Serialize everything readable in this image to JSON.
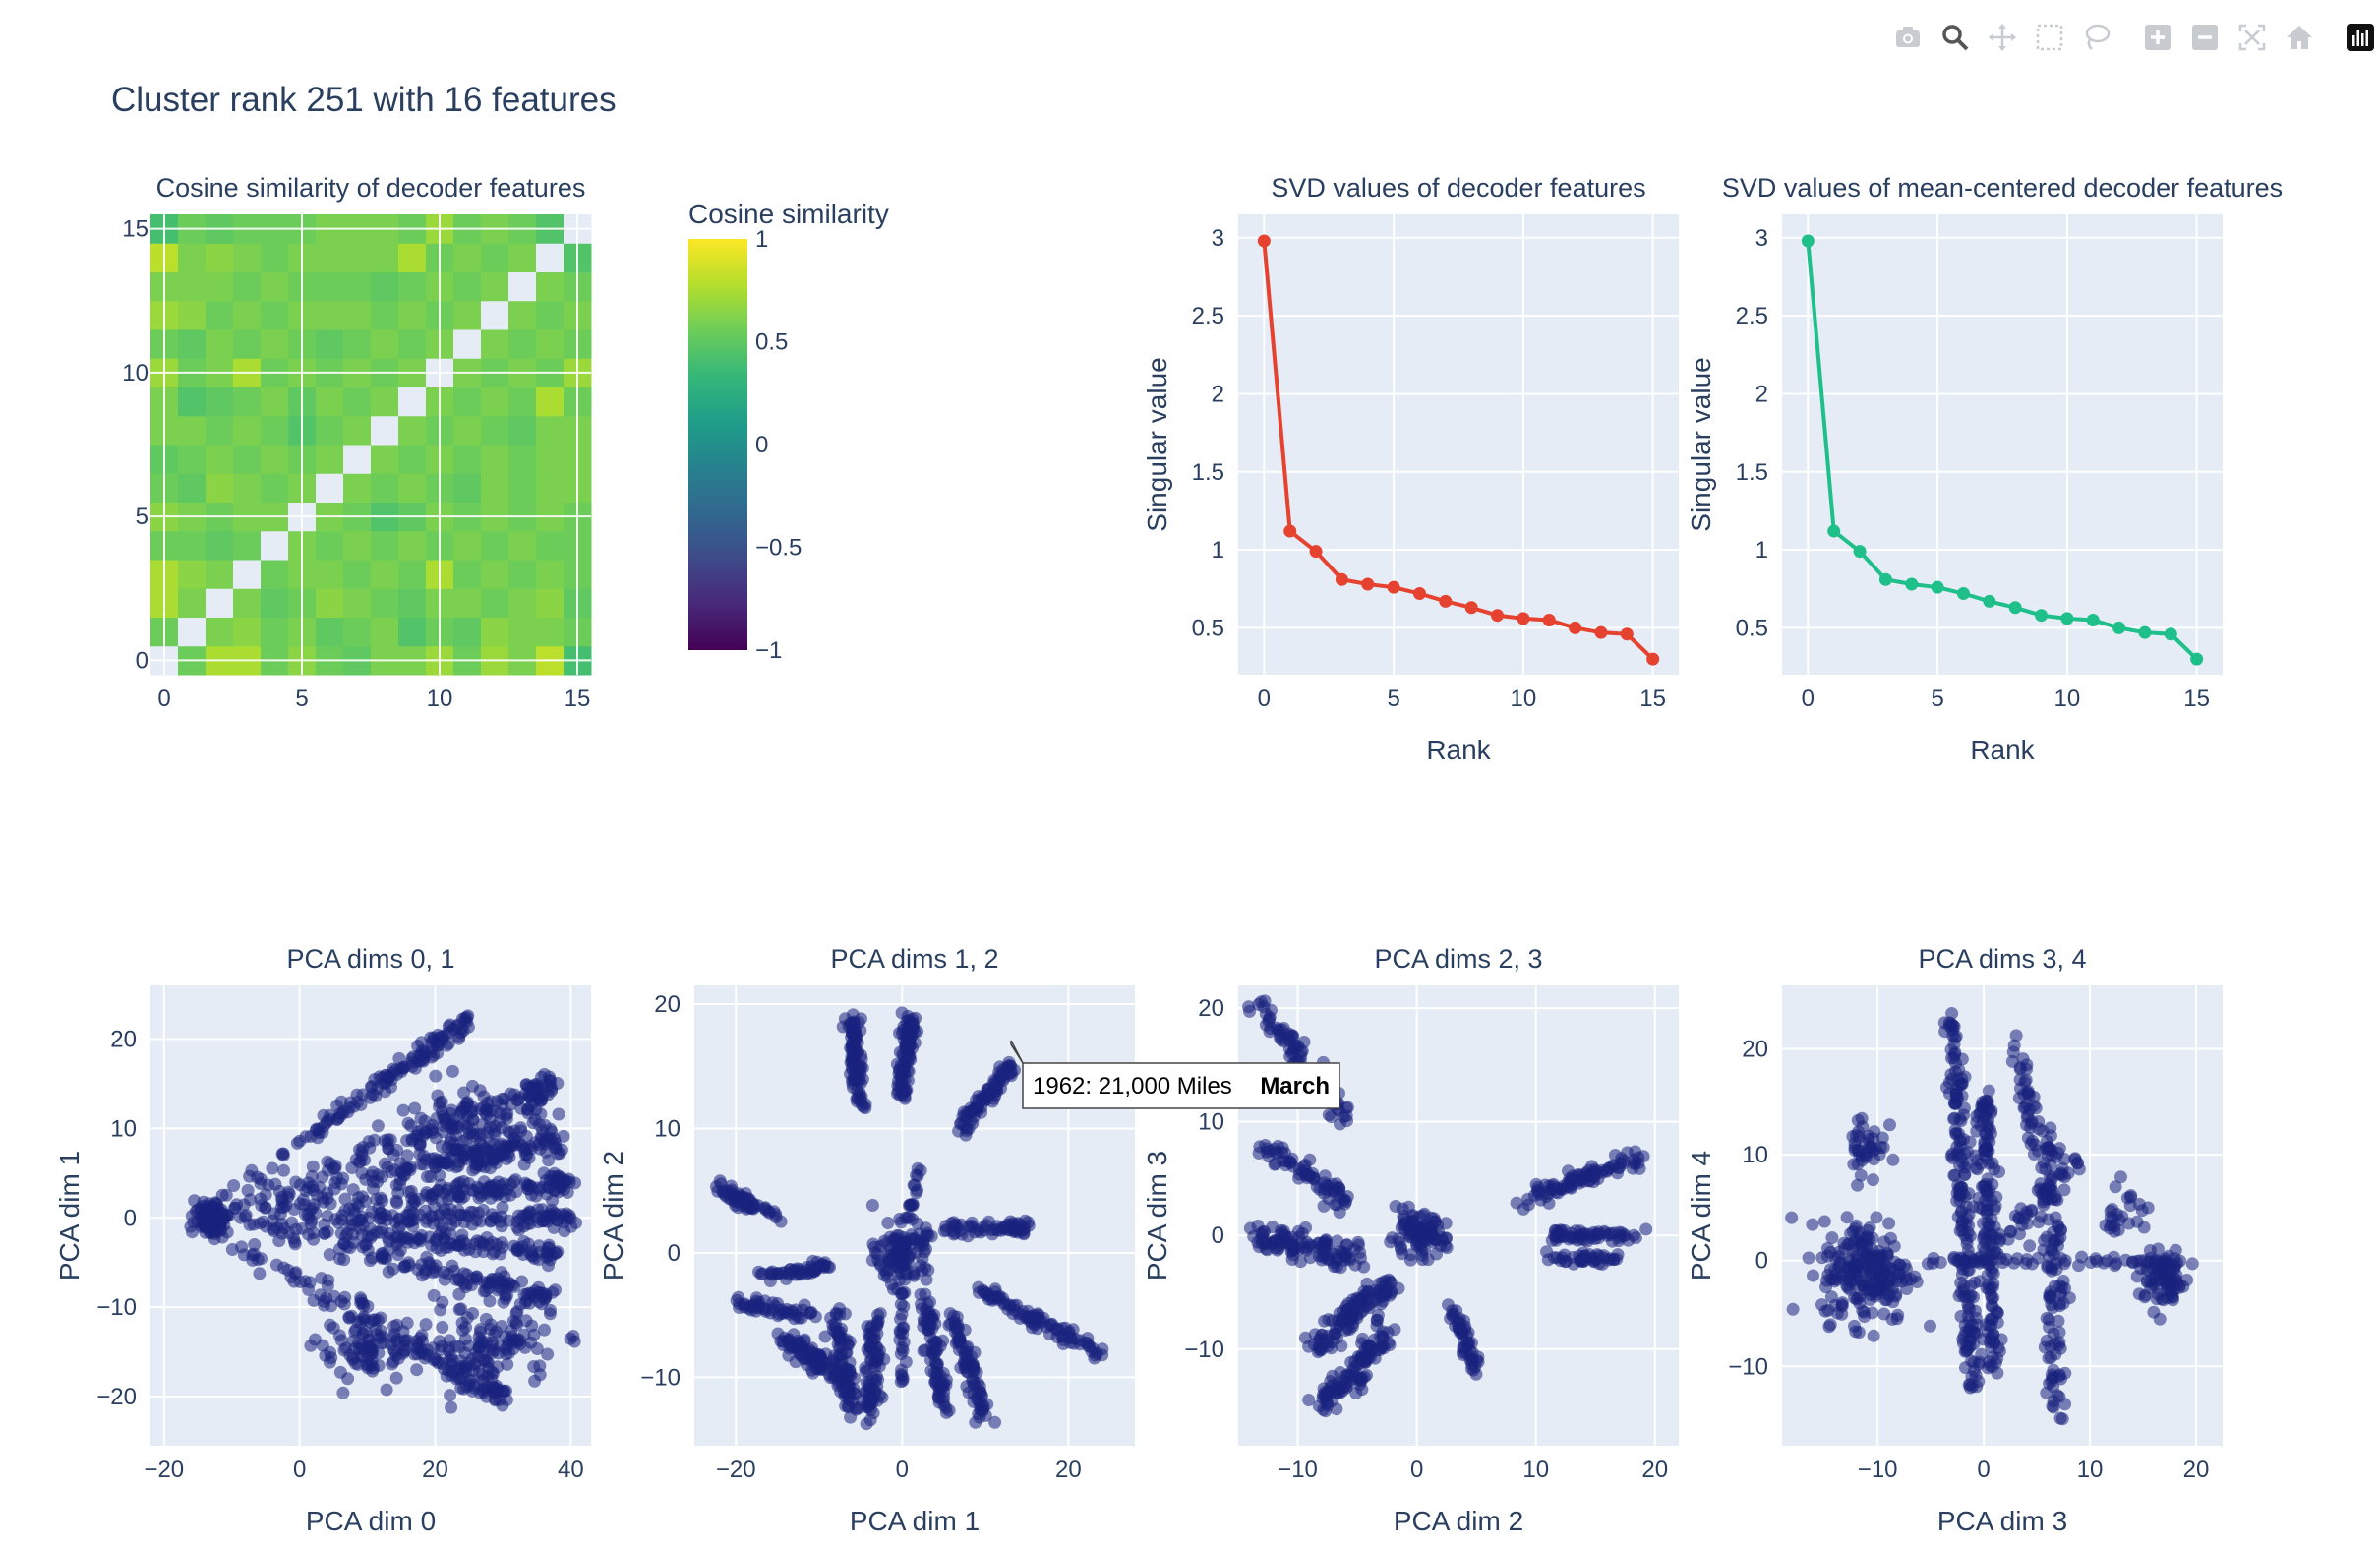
{
  "toolbar": {
    "buttons": [
      {
        "name": "camera-icon",
        "label": "Download plot as a png"
      },
      {
        "name": "zoom-icon",
        "label": "Zoom"
      },
      {
        "name": "pan-icon",
        "label": "Pan"
      },
      {
        "name": "box-select-icon",
        "label": "Box Select"
      },
      {
        "name": "lasso-select-icon",
        "label": "Lasso Select"
      },
      {
        "name": "zoom-in-icon",
        "label": "Zoom in"
      },
      {
        "name": "zoom-out-icon",
        "label": "Zoom out"
      },
      {
        "name": "autoscale-icon",
        "label": "Autoscale"
      },
      {
        "name": "reset-axes-icon",
        "label": "Reset axes"
      },
      {
        "name": "plotly-logo-icon",
        "label": "Produced with Plotly"
      }
    ]
  },
  "colors": {
    "plot_bg": "#e5ecf6",
    "grid": "#ffffff",
    "text": "#2a3f5f",
    "svd_line": "#e5432f",
    "svd_centered_line": "#1fbf8a",
    "scatter_point": "#1a237e"
  },
  "title": "Cluster rank 251 with 16 features",
  "heatmap": {
    "title": "Cosine similarity of decoder features",
    "colorbar_title": "Cosine similarity",
    "colorbar_ticks": [
      "1",
      "0.5",
      "0",
      "−0.5",
      "−1"
    ],
    "x_ticks": [
      "0",
      "5",
      "10",
      "15"
    ],
    "y_ticks": [
      "0",
      "5",
      "10",
      "15"
    ]
  },
  "tooltip": {
    "text": "1962: 21,000 Miles",
    "name": "March"
  },
  "chart_data": [
    {
      "type": "heatmap",
      "title": "Cosine similarity of decoder features",
      "size": 16,
      "colorscale": "Viridis",
      "zrange": [
        -1,
        1
      ],
      "diagonal": "blank",
      "values": [
        [
          null,
          0.55,
          0.75,
          0.75,
          0.55,
          0.65,
          0.55,
          0.5,
          0.6,
          0.6,
          0.7,
          0.55,
          0.7,
          0.6,
          0.8,
          0.4
        ],
        [
          0.55,
          null,
          0.6,
          0.65,
          0.55,
          0.6,
          0.5,
          0.55,
          0.6,
          0.45,
          0.55,
          0.5,
          0.65,
          0.6,
          0.6,
          0.55
        ],
        [
          0.75,
          0.6,
          null,
          0.6,
          0.5,
          0.55,
          0.65,
          0.6,
          0.55,
          0.5,
          0.6,
          0.6,
          0.55,
          0.6,
          0.65,
          0.5
        ],
        [
          0.75,
          0.65,
          0.6,
          null,
          0.55,
          0.6,
          0.6,
          0.55,
          0.6,
          0.55,
          0.75,
          0.55,
          0.6,
          0.55,
          0.6,
          0.55
        ],
        [
          0.55,
          0.55,
          0.5,
          0.55,
          null,
          0.6,
          0.55,
          0.6,
          0.55,
          0.6,
          0.55,
          0.6,
          0.55,
          0.6,
          0.55,
          0.55
        ],
        [
          0.65,
          0.6,
          0.55,
          0.6,
          0.6,
          null,
          0.6,
          0.55,
          0.45,
          0.5,
          0.6,
          0.55,
          0.6,
          0.55,
          0.6,
          0.55
        ],
        [
          0.55,
          0.5,
          0.65,
          0.6,
          0.55,
          0.6,
          null,
          0.6,
          0.55,
          0.6,
          0.55,
          0.5,
          0.6,
          0.55,
          0.6,
          0.6
        ],
        [
          0.5,
          0.55,
          0.6,
          0.55,
          0.6,
          0.55,
          0.6,
          null,
          0.6,
          0.55,
          0.6,
          0.55,
          0.6,
          0.55,
          0.6,
          0.6
        ],
        [
          0.6,
          0.6,
          0.55,
          0.6,
          0.55,
          0.45,
          0.55,
          0.6,
          null,
          0.6,
          0.55,
          0.6,
          0.55,
          0.5,
          0.6,
          0.6
        ],
        [
          0.6,
          0.45,
          0.5,
          0.55,
          0.6,
          0.5,
          0.6,
          0.55,
          0.6,
          null,
          0.6,
          0.55,
          0.6,
          0.55,
          0.75,
          0.55
        ],
        [
          0.7,
          0.55,
          0.6,
          0.75,
          0.55,
          0.6,
          0.55,
          0.6,
          0.55,
          0.6,
          null,
          0.6,
          0.55,
          0.6,
          0.55,
          0.7
        ],
        [
          0.55,
          0.5,
          0.6,
          0.55,
          0.6,
          0.55,
          0.5,
          0.55,
          0.6,
          0.55,
          0.6,
          null,
          0.6,
          0.55,
          0.6,
          0.55
        ],
        [
          0.7,
          0.65,
          0.55,
          0.6,
          0.55,
          0.6,
          0.6,
          0.6,
          0.55,
          0.6,
          0.55,
          0.6,
          null,
          0.6,
          0.55,
          0.6
        ],
        [
          0.6,
          0.6,
          0.6,
          0.55,
          0.6,
          0.55,
          0.55,
          0.55,
          0.5,
          0.55,
          0.6,
          0.55,
          0.6,
          null,
          0.6,
          0.55
        ],
        [
          0.8,
          0.6,
          0.65,
          0.6,
          0.55,
          0.6,
          0.6,
          0.6,
          0.6,
          0.75,
          0.55,
          0.6,
          0.55,
          0.6,
          null,
          0.45
        ],
        [
          0.4,
          0.55,
          0.5,
          0.55,
          0.55,
          0.55,
          0.6,
          0.6,
          0.6,
          0.55,
          0.7,
          0.55,
          0.6,
          0.55,
          0.45,
          null
        ]
      ]
    },
    {
      "type": "line",
      "title": "SVD values of decoder features",
      "xlabel": "Rank",
      "ylabel": "Singular value",
      "x": [
        0,
        1,
        2,
        3,
        4,
        5,
        6,
        7,
        8,
        9,
        10,
        11,
        12,
        13,
        14,
        15
      ],
      "y": [
        2.98,
        1.12,
        0.99,
        0.81,
        0.78,
        0.76,
        0.72,
        0.67,
        0.63,
        0.58,
        0.56,
        0.55,
        0.5,
        0.47,
        0.46,
        0.3
      ],
      "x_ticks": [
        0,
        5,
        10,
        15
      ],
      "y_ticks": [
        0.5,
        1,
        1.5,
        2,
        2.5,
        3
      ],
      "xlim": [
        -1,
        16
      ],
      "ylim": [
        0.2,
        3.15
      ],
      "color": "#e5432f"
    },
    {
      "type": "line",
      "title": "SVD values of mean-centered decoder features",
      "xlabel": "Rank",
      "ylabel": "Singular value",
      "x": [
        0,
        1,
        2,
        3,
        4,
        5,
        6,
        7,
        8,
        9,
        10,
        11,
        12,
        13,
        14,
        15
      ],
      "y": [
        2.98,
        1.12,
        0.99,
        0.81,
        0.78,
        0.76,
        0.72,
        0.67,
        0.63,
        0.58,
        0.56,
        0.55,
        0.5,
        0.47,
        0.46,
        0.3
      ],
      "x_ticks": [
        0,
        5,
        10,
        15
      ],
      "y_ticks": [
        0.5,
        1,
        1.5,
        2,
        2.5,
        3
      ],
      "xlim": [
        -1,
        16
      ],
      "ylim": [
        0.2,
        3.15
      ],
      "color": "#1fbf8a"
    },
    {
      "type": "scatter",
      "title": "PCA dims 0, 1",
      "xlabel": "PCA dim 0",
      "ylabel": "PCA dim 1",
      "xlim": [
        -22,
        43
      ],
      "ylim": [
        -25.5,
        26
      ],
      "x_ticks": [
        -20,
        0,
        20,
        40
      ],
      "y_ticks": [
        -20,
        -10,
        0,
        10,
        20
      ],
      "clusters": [
        {
          "kind": "ray",
          "from": [
            -16,
            0
          ],
          "to": [
            25,
            22
          ],
          "n": 130,
          "spread": 1.2
        },
        {
          "kind": "ray",
          "from": [
            -16,
            0
          ],
          "to": [
            38,
            15
          ],
          "n": 140,
          "spread": 1.4
        },
        {
          "kind": "ray",
          "from": [
            -16,
            0
          ],
          "to": [
            38,
            9
          ],
          "n": 140,
          "spread": 1.3
        },
        {
          "kind": "ray",
          "from": [
            -16,
            0
          ],
          "to": [
            40,
            4
          ],
          "n": 130,
          "spread": 1.2
        },
        {
          "kind": "ray",
          "from": [
            -16,
            0
          ],
          "to": [
            40,
            0
          ],
          "n": 130,
          "spread": 1.0
        },
        {
          "kind": "ray",
          "from": [
            -16,
            0
          ],
          "to": [
            38,
            -4
          ],
          "n": 130,
          "spread": 1.2
        },
        {
          "kind": "ray",
          "from": [
            -16,
            0
          ],
          "to": [
            38,
            -9
          ],
          "n": 120,
          "spread": 1.3
        },
        {
          "kind": "ray",
          "from": [
            -16,
            0
          ],
          "to": [
            30,
            -20
          ],
          "n": 130,
          "spread": 1.5
        },
        {
          "kind": "blob",
          "center": [
            28,
            -14
          ],
          "sx": 8,
          "sy": 4,
          "n": 120
        },
        {
          "kind": "blob",
          "center": [
            10,
            -15
          ],
          "sx": 6,
          "sy": 3,
          "n": 80
        },
        {
          "kind": "blob",
          "center": [
            26,
            8
          ],
          "sx": 10,
          "sy": 5,
          "n": 150
        },
        {
          "kind": "blob",
          "center": [
            -13,
            0
          ],
          "sx": 2,
          "sy": 1.5,
          "n": 120
        }
      ]
    },
    {
      "type": "scatter",
      "title": "PCA dims 1, 2",
      "xlabel": "PCA dim 1",
      "ylabel": "PCA dim 2",
      "xlim": [
        -25,
        28
      ],
      "ylim": [
        -15.5,
        21.5
      ],
      "x_ticks": [
        -20,
        0,
        20
      ],
      "y_ticks": [
        -10,
        0,
        10,
        20
      ],
      "clusters": [
        {
          "kind": "segment",
          "from": [
            -6,
            19
          ],
          "to": [
            -5,
            12
          ],
          "n": 100,
          "spread": 0.8
        },
        {
          "kind": "segment",
          "from": [
            1,
            19
          ],
          "to": [
            0,
            13
          ],
          "n": 100,
          "spread": 0.8
        },
        {
          "kind": "segment",
          "from": [
            13,
            15
          ],
          "to": [
            7,
            10
          ],
          "n": 80,
          "spread": 0.8
        },
        {
          "kind": "segment",
          "from": [
            -22,
            5
          ],
          "to": [
            -15,
            3
          ],
          "n": 60,
          "spread": 0.6
        },
        {
          "kind": "segment",
          "from": [
            5,
            2
          ],
          "to": [
            15,
            2
          ],
          "n": 60,
          "spread": 0.6
        },
        {
          "kind": "segment",
          "from": [
            -17,
            -2
          ],
          "to": [
            -8,
            -1
          ],
          "n": 50,
          "spread": 0.6
        },
        {
          "kind": "segment",
          "from": [
            -20,
            -4
          ],
          "to": [
            -11,
            -5
          ],
          "n": 50,
          "spread": 0.6
        },
        {
          "kind": "segment",
          "from": [
            9,
            -3
          ],
          "to": [
            24,
            -8
          ],
          "n": 90,
          "spread": 0.7
        },
        {
          "kind": "segment",
          "from": [
            -14,
            -7
          ],
          "to": [
            -7,
            -10
          ],
          "n": 90,
          "spread": 1.0
        },
        {
          "kind": "segment",
          "from": [
            -8,
            -5
          ],
          "to": [
            -6,
            -13
          ],
          "n": 80,
          "spread": 1.0
        },
        {
          "kind": "segment",
          "from": [
            -3,
            -5
          ],
          "to": [
            -4,
            -13
          ],
          "n": 80,
          "spread": 1.0
        },
        {
          "kind": "segment",
          "from": [
            3,
            -4
          ],
          "to": [
            5,
            -13
          ],
          "n": 80,
          "spread": 1.0
        },
        {
          "kind": "segment",
          "from": [
            6,
            -5
          ],
          "to": [
            10,
            -13
          ],
          "n": 80,
          "spread": 1.0
        },
        {
          "kind": "blob",
          "center": [
            0,
            0
          ],
          "sx": 2.5,
          "sy": 2,
          "n": 120
        },
        {
          "kind": "segment",
          "from": [
            0,
            0
          ],
          "to": [
            0,
            -11
          ],
          "n": 30,
          "spread": 0.4
        },
        {
          "kind": "segment",
          "from": [
            0,
            0
          ],
          "to": [
            2,
            7
          ],
          "n": 20,
          "spread": 0.4
        }
      ]
    },
    {
      "type": "scatter",
      "title": "PCA dims 2, 3",
      "xlabel": "PCA dim 2",
      "ylabel": "PCA dim 3",
      "xlim": [
        -15,
        22
      ],
      "ylim": [
        -18.5,
        22
      ],
      "x_ticks": [
        -10,
        0,
        10,
        20
      ],
      "y_ticks": [
        -10,
        0,
        10,
        20
      ],
      "clusters": [
        {
          "kind": "segment",
          "from": [
            -13,
            20
          ],
          "to": [
            -6,
            10
          ],
          "n": 90,
          "spread": 0.9
        },
        {
          "kind": "segment",
          "from": [
            -13,
            8
          ],
          "to": [
            -6,
            3
          ],
          "n": 70,
          "spread": 0.9
        },
        {
          "kind": "segment",
          "from": [
            -14,
            0
          ],
          "to": [
            -5,
            -2
          ],
          "n": 110,
          "spread": 1.2
        },
        {
          "kind": "segment",
          "from": [
            -9,
            -10
          ],
          "to": [
            -2,
            -4
          ],
          "n": 100,
          "spread": 1.0
        },
        {
          "kind": "segment",
          "from": [
            -8,
            -15
          ],
          "to": [
            -2,
            -8
          ],
          "n": 90,
          "spread": 1.0
        },
        {
          "kind": "segment",
          "from": [
            3,
            -6
          ],
          "to": [
            5,
            -12
          ],
          "n": 50,
          "spread": 0.6
        },
        {
          "kind": "segment",
          "from": [
            9,
            3
          ],
          "to": [
            19,
            7
          ],
          "n": 90,
          "spread": 0.8
        },
        {
          "kind": "segment",
          "from": [
            11,
            0
          ],
          "to": [
            19,
            0
          ],
          "n": 60,
          "spread": 0.5
        },
        {
          "kind": "segment",
          "from": [
            11,
            -2
          ],
          "to": [
            17,
            -2
          ],
          "n": 40,
          "spread": 0.5
        },
        {
          "kind": "blob",
          "center": [
            0,
            0
          ],
          "sx": 2,
          "sy": 1.5,
          "n": 100
        },
        {
          "kind": "segment",
          "from": [
            -2,
            -2
          ],
          "to": [
            -5,
            -14
          ],
          "n": 30,
          "spread": 0.4
        }
      ]
    },
    {
      "type": "scatter",
      "title": "PCA dims 3, 4",
      "xlabel": "PCA dim 3",
      "ylabel": "PCA dim 4",
      "xlim": [
        -19,
        22.5
      ],
      "ylim": [
        -17.5,
        26
      ],
      "x_ticks": [
        -10,
        0,
        10,
        20
      ],
      "y_ticks": [
        -10,
        0,
        10,
        20
      ],
      "clusters": [
        {
          "kind": "blob",
          "center": [
            -11,
            -1
          ],
          "sx": 3.5,
          "sy": 4,
          "n": 220
        },
        {
          "kind": "blob",
          "center": [
            -11,
            11
          ],
          "sx": 1.5,
          "sy": 3,
          "n": 40
        },
        {
          "kind": "segment",
          "from": [
            -3,
            23
          ],
          "to": [
            -1,
            -12
          ],
          "n": 180,
          "spread": 0.8
        },
        {
          "kind": "segment",
          "from": [
            0,
            16
          ],
          "to": [
            1,
            -11
          ],
          "n": 150,
          "spread": 0.9
        },
        {
          "kind": "segment",
          "from": [
            6,
            12
          ],
          "to": [
            7,
            -15
          ],
          "n": 120,
          "spread": 1.2
        },
        {
          "kind": "segment",
          "from": [
            3,
            21
          ],
          "to": [
            5,
            10
          ],
          "n": 40,
          "spread": 0.7
        },
        {
          "kind": "segment",
          "from": [
            -6,
            0
          ],
          "to": [
            20,
            0
          ],
          "n": 60,
          "spread": 0.5
        },
        {
          "kind": "blob",
          "center": [
            17,
            -2
          ],
          "sx": 2,
          "sy": 2,
          "n": 80
        },
        {
          "kind": "blob",
          "center": [
            13,
            5
          ],
          "sx": 2,
          "sy": 2,
          "n": 25
        },
        {
          "kind": "segment",
          "from": [
            1,
            1
          ],
          "to": [
            9,
            10
          ],
          "n": 40,
          "spread": 0.8
        }
      ]
    }
  ]
}
